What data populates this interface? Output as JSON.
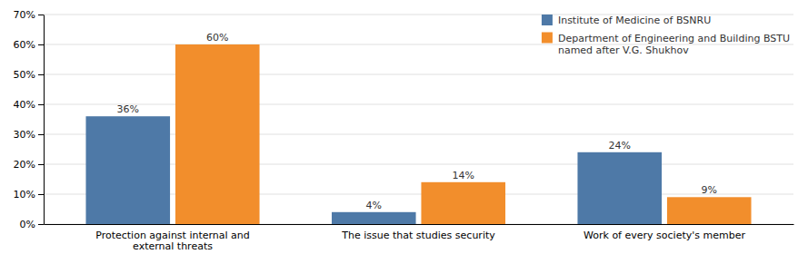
{
  "chart_data": {
    "type": "bar",
    "categories": [
      "Protection against internal and\nexternal threats",
      "The issue that studies security",
      "Work of every society's member"
    ],
    "series": [
      {
        "name": "Institute of Medicine of BSNRU",
        "values": [
          36,
          4,
          24
        ],
        "value_labels": [
          "36%",
          "4%",
          "24%"
        ]
      },
      {
        "name": "Department of Engineering and Building BSTU\nnamed after V.G. Shukhov",
        "values": [
          60,
          14,
          9
        ],
        "value_labels": [
          "60%",
          "14%",
          "9%"
        ]
      }
    ],
    "ylim": [
      0,
      70
    ],
    "yticks": [
      {
        "value": 0,
        "label": "0%"
      },
      {
        "value": 10,
        "label": "10%"
      },
      {
        "value": 20,
        "label": "20%"
      },
      {
        "value": 30,
        "label": "30%"
      },
      {
        "value": 40,
        "label": "40%"
      },
      {
        "value": 50,
        "label": "50%"
      },
      {
        "value": 60,
        "label": "60%"
      },
      {
        "value": 70,
        "label": "70%"
      }
    ],
    "grid": true,
    "legend": "upper right",
    "data_labels": true
  }
}
